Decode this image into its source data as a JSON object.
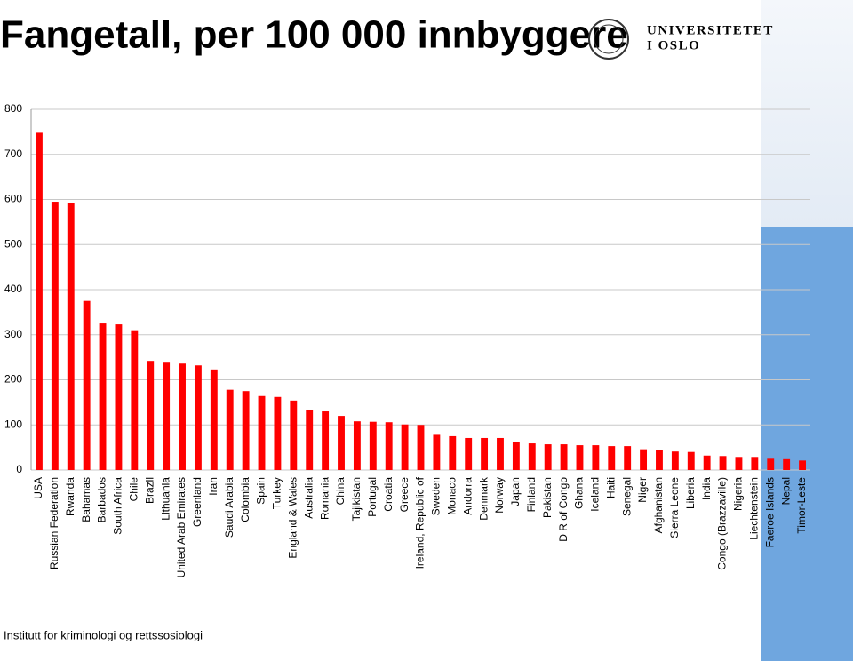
{
  "chart_data": {
    "type": "bar",
    "title": "Fangetall, per 100 000 innbyggere",
    "categories": [
      "USA",
      "Russian Federation",
      "Rwanda",
      "Bahamas",
      "Barbados",
      "South Africa",
      "Chile",
      "Brazil",
      "Lithuania",
      "United Arab Emirates",
      "Greenland",
      "Iran",
      "Saudi Arabia",
      "Colombia",
      "Spain",
      "Turkey",
      "England & Wales",
      "Australia",
      "Romania",
      "China",
      "Tajikistan",
      "Portugal",
      "Croatia",
      "Greece",
      "Ireland, Republic of",
      "Sweden",
      "Monaco",
      "Andorra",
      "Denmark",
      "Norway",
      "Japan",
      "Finland",
      "Pakistan",
      "D R of Congo",
      "Ghana",
      "Iceland",
      "Haiti",
      "Senegal",
      "Niger",
      "Afghanistan",
      "Sierra Leone",
      "Liberia",
      "India",
      "Congo (Brazzaville)",
      "Nigeria",
      "Liechtenstein",
      "Faeroe Islands",
      "Nepal",
      "Timor-Leste"
    ],
    "values": [
      748,
      595,
      593,
      375,
      325,
      323,
      310,
      242,
      238,
      236,
      232,
      223,
      178,
      175,
      164,
      162,
      154,
      134,
      130,
      120,
      108,
      107,
      106,
      101,
      100,
      78,
      75,
      71,
      71,
      71,
      62,
      59,
      57,
      57,
      55,
      55,
      53,
      53,
      46,
      44,
      41,
      40,
      32,
      31,
      29,
      29,
      25,
      24,
      21
    ],
    "color": "#ff0000",
    "ylim": [
      0,
      800
    ],
    "yticks": [
      0,
      100,
      200,
      300,
      400,
      500,
      600,
      700,
      800
    ],
    "grid": true
  },
  "logo": {
    "line1": "UNIVERSITETET",
    "line2": "I OSLO"
  },
  "footer": "Institutt for kriminologi og rettssosiologi"
}
